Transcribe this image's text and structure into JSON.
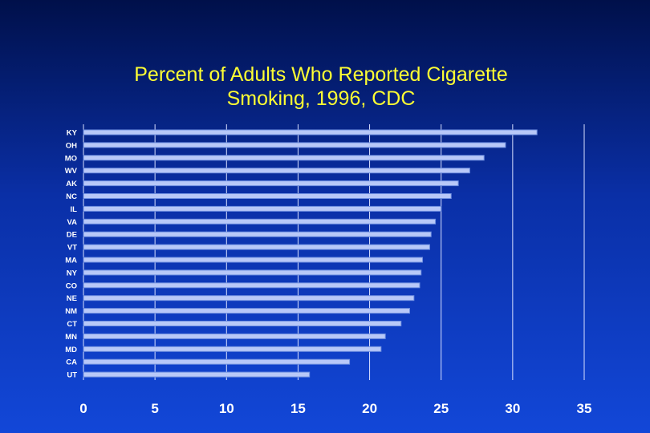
{
  "title": {
    "line1": "Percent of Adults Who Reported Cigarette",
    "line2": "Smoking, 1996, CDC"
  },
  "colors": {
    "title": "#ffff33",
    "bar_fill": "#b8c8f8",
    "bar_edge": "#6f8fe0",
    "gridline": "#d8e0ff",
    "tick_label": "#ffffff"
  },
  "chart_data": {
    "type": "bar",
    "orientation": "horizontal",
    "categories": [
      "KY",
      "OH",
      "MO",
      "WV",
      "AK",
      "NC",
      "IL",
      "VA",
      "DE",
      "VT",
      "MA",
      "NY",
      "CO",
      "NE",
      "NM",
      "CT",
      "MN",
      "MD",
      "CA",
      "UT"
    ],
    "values": [
      31.7,
      29.5,
      28.0,
      27.0,
      26.2,
      25.7,
      25.0,
      24.6,
      24.3,
      24.2,
      23.7,
      23.6,
      23.5,
      23.1,
      22.8,
      22.2,
      21.1,
      20.8,
      18.6,
      15.8
    ],
    "xlim": [
      0,
      35
    ],
    "xticks": [
      "0",
      "5",
      "10",
      "15",
      "20",
      "25",
      "30",
      "35"
    ],
    "grid": "vertical"
  }
}
